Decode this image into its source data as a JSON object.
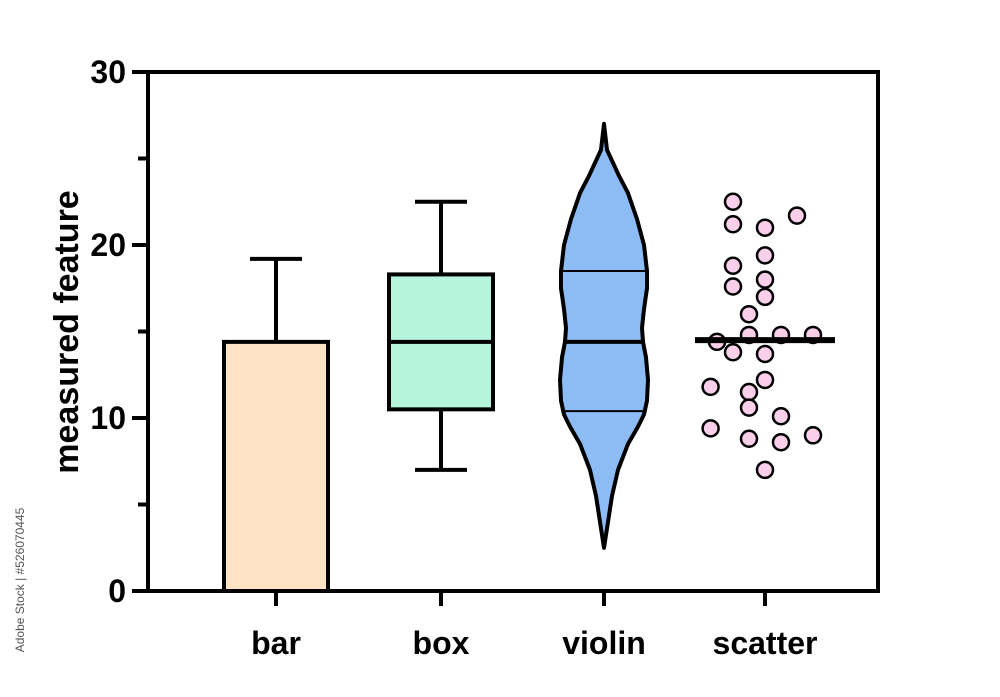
{
  "chart_data": {
    "type": "bar",
    "ylabel": "measured feature",
    "ylim": [
      0,
      30
    ],
    "yticks": [
      "0",
      "10",
      "20",
      "30"
    ],
    "minor_ticks": [
      5,
      15,
      25
    ],
    "categories": [
      "bar",
      "box",
      "violin",
      "scatter"
    ],
    "grid": false,
    "bar": {
      "mean": 14.4,
      "sd_upper": 19.2,
      "color": "#fde2c4"
    },
    "box": {
      "min": 7.0,
      "q1": 10.5,
      "median": 14.4,
      "q3": 18.3,
      "max": 22.5,
      "color": "#b5f5de"
    },
    "violin": {
      "min": 2.5,
      "q1": 10.4,
      "median": 14.4,
      "q3": 18.5,
      "max": 27.0,
      "color": "#8dbcf5"
    },
    "scatter": {
      "mean": 14.5,
      "color": "#f9cfea",
      "points": [
        {
          "dx": -1,
          "y": 22.5
        },
        {
          "dx": 0,
          "y": 21.0
        },
        {
          "dx": 1,
          "y": 21.7
        },
        {
          "dx": -1,
          "y": 21.2
        },
        {
          "dx": 0,
          "y": 19.4
        },
        {
          "dx": -1,
          "y": 18.8
        },
        {
          "dx": 0,
          "y": 18.0
        },
        {
          "dx": -1,
          "y": 17.6
        },
        {
          "dx": 0,
          "y": 17.0
        },
        {
          "dx": -0.5,
          "y": 16.0
        },
        {
          "dx": -1.5,
          "y": 14.4
        },
        {
          "dx": -0.5,
          "y": 14.8
        },
        {
          "dx": 0.5,
          "y": 14.8
        },
        {
          "dx": 1.5,
          "y": 14.8
        },
        {
          "dx": -1,
          "y": 13.8
        },
        {
          "dx": 0,
          "y": 13.7
        },
        {
          "dx": 0,
          "y": 12.2
        },
        {
          "dx": -1.7,
          "y": 11.8
        },
        {
          "dx": -0.5,
          "y": 11.5
        },
        {
          "dx": -0.5,
          "y": 10.6
        },
        {
          "dx": 0.5,
          "y": 10.1
        },
        {
          "dx": -1.7,
          "y": 9.4
        },
        {
          "dx": -0.5,
          "y": 8.8
        },
        {
          "dx": 0.5,
          "y": 8.6
        },
        {
          "dx": 1.5,
          "y": 9.0
        },
        {
          "dx": 0,
          "y": 7.0
        }
      ]
    }
  },
  "watermark": {
    "stock_id": "Adobe Stock | #526070445"
  }
}
